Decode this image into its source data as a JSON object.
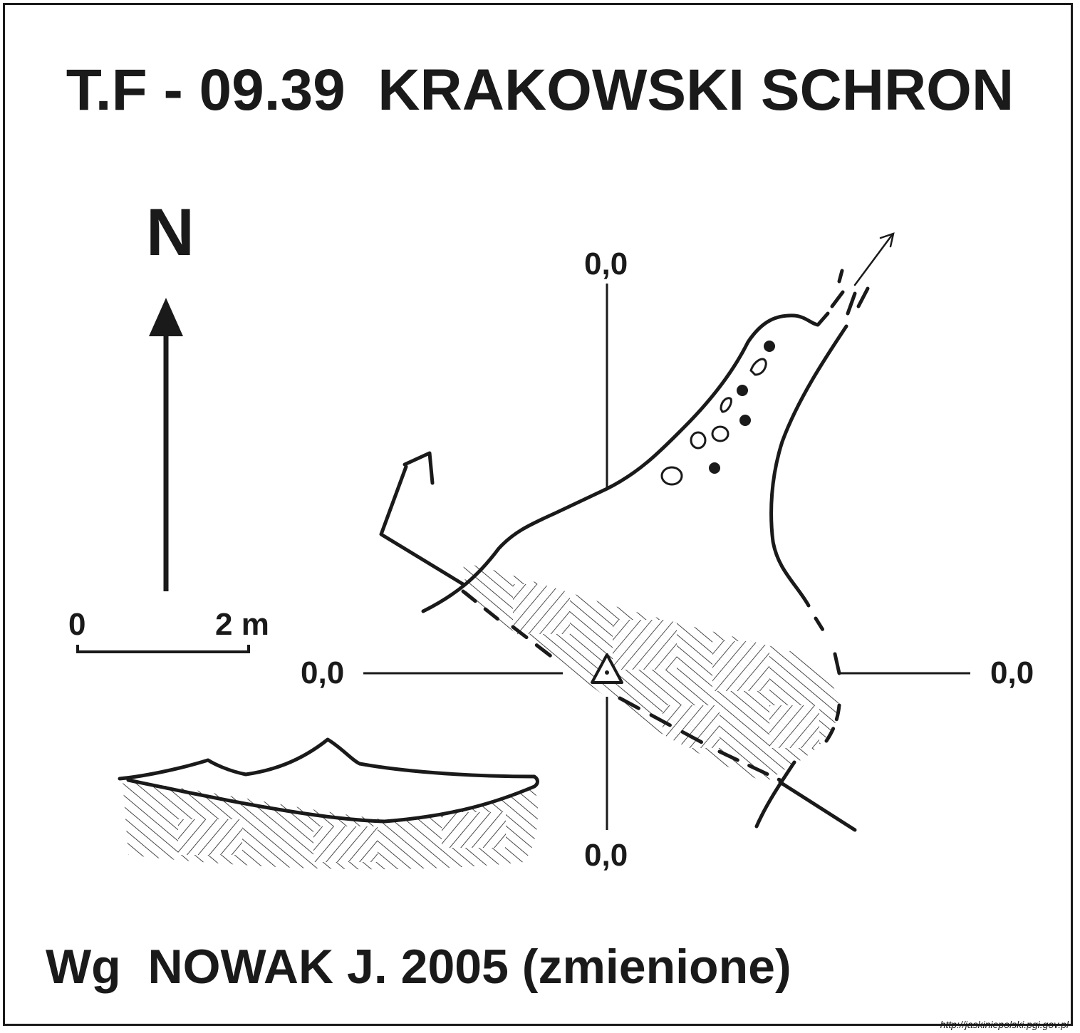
{
  "title": "T.F - 09.39  KRAKOWSKI SCHRON",
  "north_label": "N",
  "scale": {
    "start": "0",
    "end": "2 m"
  },
  "datum_labels": {
    "top": "0,0",
    "left": "0,0",
    "right": "0,0",
    "bottom": "0,0"
  },
  "source": "Wg  NOWAK J. 2005 (zmienione)",
  "credit": "http://jaskiniepolski.pgi.gov.pl",
  "icons": [
    "north-arrow-icon",
    "survey-point-triangle-icon",
    "rock-debris-icon",
    "exit-arrow-icon"
  ],
  "colors": {
    "ink": "#1a1a1a",
    "paper": "#ffffff"
  }
}
